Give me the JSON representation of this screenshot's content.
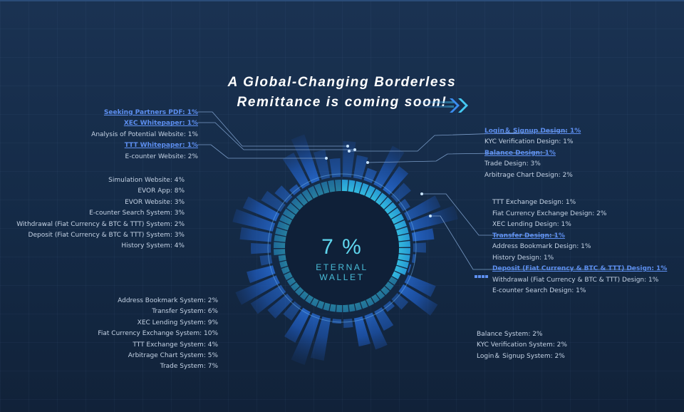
{
  "headline": {
    "line1": "A Global-Changing Borderless",
    "line2": "Remittance is coming soon!"
  },
  "center": {
    "percent": "7 %",
    "label": "ETERNAL WALLET"
  },
  "colors": {
    "accent": "#5d8ff0",
    "cyan": "#5fd6ee",
    "background": "#152b48"
  },
  "icons": {
    "chevrons": "double-chevron-right-icon",
    "marker": "dotted-marker-icon"
  },
  "left_top": [
    {
      "text": "Seeking Partners PDF:  1%",
      "highlight": true
    },
    {
      "text": "XEC Whitepaper:  1%",
      "highlight": true
    },
    {
      "text": "Analysis of Potential Website:  1%",
      "highlight": false
    },
    {
      "text": "TTT Whitepaper:  1%",
      "highlight": true
    },
    {
      "text": "E-counter Website:  2%",
      "highlight": false
    }
  ],
  "left_mid": [
    "Simulation Website:  4%",
    "EVOR App:  8%",
    "EVOR Website:  3%",
    "E-counter Search System:  3%",
    "Withdrawal (Fiat Currency & BTC & TTT)  System:  2%",
    "Deposit (Fiat Currency & BTC & TTT)  System:  3%",
    "History System:  4%"
  ],
  "left_bottom": [
    "Address Bookmark System:  2%",
    "Transfer System:  6%",
    "XEC Lending System:  9%",
    "Fiat Currency Exchange System:  10%",
    "TTT Exchange System:  4%",
    "Arbitrage Chart System:  5%",
    "Trade System:  7%"
  ],
  "right_top": [
    {
      "text": "Login＆ Signup Design:  1%",
      "highlight": true
    },
    {
      "text": "KYC Verification Design:  1%",
      "highlight": false
    },
    {
      "text": "Balance Design:  1%",
      "highlight": true
    },
    {
      "text": "Trade Design:  3%",
      "highlight": false
    },
    {
      "text": "Arbitrage Chart Design:  2%",
      "highlight": false
    }
  ],
  "right_mid": [
    {
      "text": "TTT Exchange Design:  1%",
      "highlight": false
    },
    {
      "text": "Fiat Currency Exchange Design:  2%",
      "highlight": false
    },
    {
      "text": "XEC Lending Design:  1%",
      "highlight": false
    },
    {
      "text": "Transfer Design:  1%",
      "highlight": true
    },
    {
      "text": "Address Bookmark Design:  1%",
      "highlight": false
    },
    {
      "text": "History Design:  1%",
      "highlight": false
    },
    {
      "text": "Deposit (Fiat Currency & BTC & TTT) Design:  1%",
      "highlight": true
    },
    {
      "text": "Withdrawal (Fiat Currency & BTC & TTT) Design:  1%",
      "highlight": false
    },
    {
      "text": "E-counter Search Design:  1%",
      "highlight": false
    }
  ],
  "right_bottom": [
    "Balance System:  2%",
    "KYC Verification System:  2%",
    "Login＆ Signup System:  2%"
  ]
}
